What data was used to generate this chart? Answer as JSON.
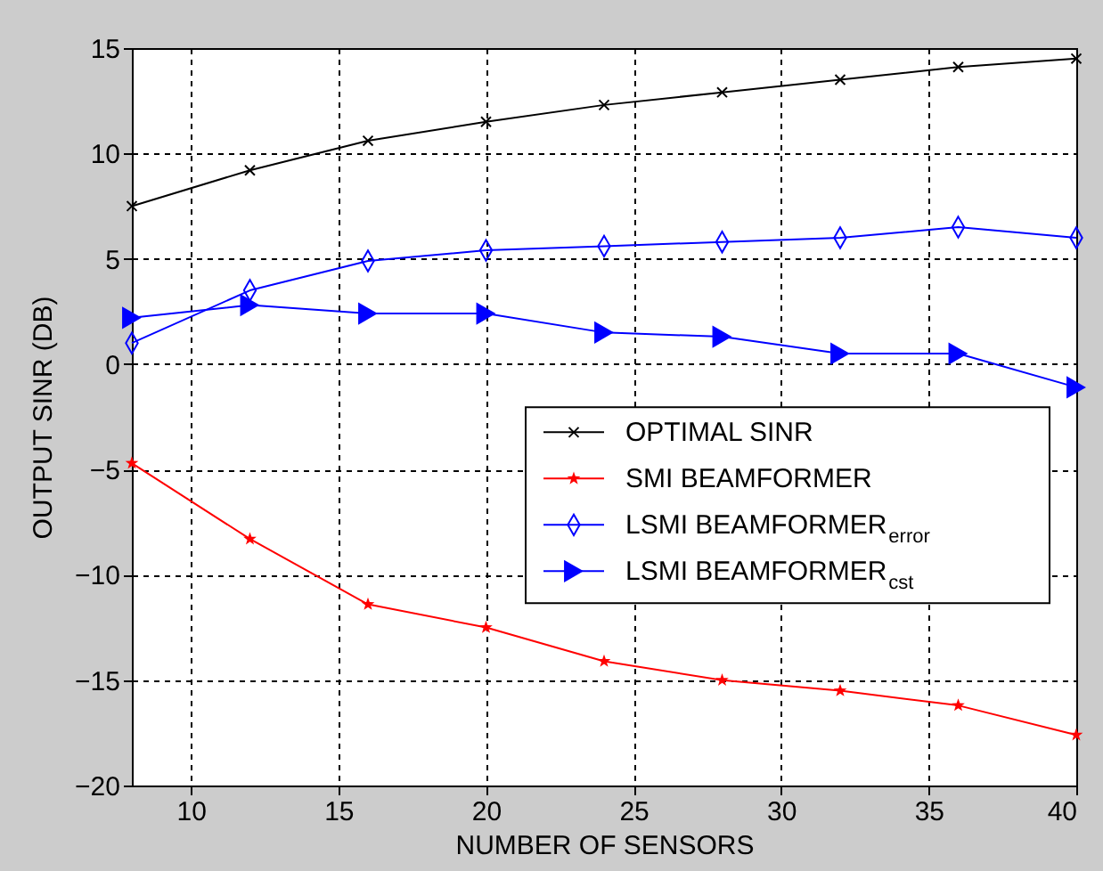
{
  "chart_data": {
    "type": "line",
    "xlabel": "NUMBER OF SENSORS",
    "ylabel": "OUTPUT SINR (DB)",
    "x": [
      8,
      12,
      16,
      20,
      24,
      28,
      32,
      36,
      40
    ],
    "series": [
      {
        "name": "OPTIMAL SINR",
        "color": "#000000",
        "marker": "cross",
        "values": [
          7.5,
          9.2,
          10.6,
          11.5,
          12.3,
          12.9,
          13.5,
          14.1,
          14.5
        ]
      },
      {
        "name": "SMI BEAMFORMER",
        "color": "#ff0000",
        "marker": "star",
        "values": [
          -4.7,
          -8.3,
          -11.4,
          -12.5,
          -14.1,
          -15.0,
          -15.5,
          -16.2,
          -17.6
        ]
      },
      {
        "name": "LSMI BEAMFORMER$_{error}$",
        "color": "#0000ff",
        "marker": "diamond",
        "values": [
          1.0,
          3.5,
          4.9,
          5.4,
          5.6,
          5.8,
          6.0,
          6.5,
          6.0
        ]
      },
      {
        "name": "LSMI BEAMFORMER$_{cst}$",
        "color": "#0000ff",
        "marker": "triangle",
        "values": [
          2.2,
          2.8,
          2.4,
          2.4,
          1.5,
          1.3,
          0.5,
          0.5,
          -1.1
        ]
      }
    ],
    "xlim": [
      8,
      40
    ],
    "xticks": [
      10,
      15,
      20,
      25,
      30,
      35,
      40
    ],
    "ylim": [
      -20,
      15
    ],
    "yticks": [
      -20,
      -15,
      -10,
      -5,
      0,
      5,
      10,
      15
    ],
    "grid": true,
    "legend": "right",
    "line_style": "solid"
  }
}
